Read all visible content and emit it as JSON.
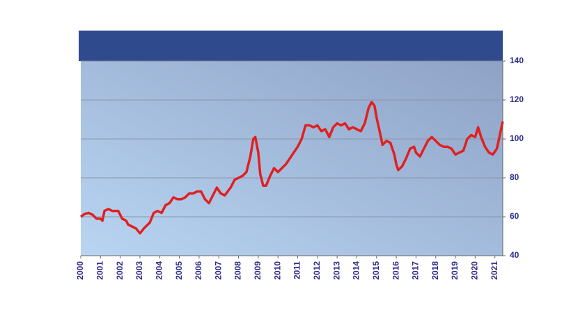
{
  "chart_data": {
    "type": "line",
    "color": "#e02020",
    "x": [
      2000.0,
      2000.2,
      2000.4,
      2000.6,
      2000.8,
      2001.0,
      2001.1,
      2001.2,
      2001.4,
      2001.6,
      2001.9,
      2002.1,
      2002.3,
      2002.4,
      2002.6,
      2002.8,
      2003.0,
      2003.2,
      2003.5,
      2003.7,
      2003.9,
      2004.1,
      2004.3,
      2004.5,
      2004.7,
      2004.9,
      2005.1,
      2005.3,
      2005.5,
      2005.7,
      2005.9,
      2006.1,
      2006.3,
      2006.5,
      2006.7,
      2006.9,
      2007.1,
      2007.3,
      2007.6,
      2007.8,
      2008.0,
      2008.2,
      2008.4,
      2008.6,
      2008.75,
      2008.85,
      2009.0,
      2009.1,
      2009.25,
      2009.4,
      2009.6,
      2009.8,
      2010.0,
      2010.2,
      2010.4,
      2010.6,
      2010.8,
      2011.0,
      2011.2,
      2011.4,
      2011.6,
      2011.8,
      2012.0,
      2012.2,
      2012.4,
      2012.6,
      2012.8,
      2013.0,
      2013.2,
      2013.4,
      2013.6,
      2013.8,
      2014.0,
      2014.2,
      2014.4,
      2014.6,
      2014.75,
      2014.9,
      2015.0,
      2015.2,
      2015.3,
      2015.5,
      2015.7,
      2015.9,
      2016.0,
      2016.1,
      2016.3,
      2016.5,
      2016.7,
      2016.9,
      2017.0,
      2017.2,
      2017.4,
      2017.6,
      2017.8,
      2018.0,
      2018.2,
      2018.4,
      2018.6,
      2018.8,
      2019.0,
      2019.2,
      2019.4,
      2019.6,
      2019.8,
      2020.0,
      2020.15,
      2020.3,
      2020.5,
      2020.7,
      2020.9,
      2021.1,
      2021.25,
      2021.4
    ],
    "values": [
      60,
      61.5,
      62,
      61,
      59,
      59,
      58,
      63,
      64,
      63,
      63,
      59,
      58,
      56,
      55,
      54,
      51.5,
      54,
      57,
      62,
      63,
      62,
      66,
      67,
      70,
      69,
      69,
      70,
      72,
      72,
      73,
      73,
      69,
      67,
      71,
      75,
      72,
      71,
      75,
      79,
      80,
      81,
      83,
      91,
      100,
      101,
      93,
      82,
      76,
      76,
      81,
      85,
      83,
      85,
      87,
      90,
      93,
      96,
      100,
      107,
      107,
      106,
      107,
      104,
      105,
      101,
      106,
      108,
      107,
      108,
      105,
      106,
      105,
      104,
      108,
      116,
      119,
      117,
      111,
      102,
      97,
      99,
      98,
      92,
      87,
      84,
      86,
      90,
      95,
      96,
      93,
      91,
      95,
      99,
      101,
      99,
      97,
      96,
      96,
      95,
      92,
      93,
      94,
      100,
      102,
      101,
      106,
      101,
      96,
      93,
      92,
      95,
      102,
      109
    ],
    "xlim": [
      2000,
      2021.4
    ],
    "ylim": [
      40,
      140
    ],
    "xticks": [
      2000,
      2001,
      2002,
      2003,
      2004,
      2005,
      2006,
      2007,
      2008,
      2009,
      2010,
      2011,
      2012,
      2013,
      2014,
      2015,
      2016,
      2017,
      2018,
      2019,
      2020,
      2021
    ],
    "yticks": [
      40,
      60,
      80,
      100,
      120,
      140
    ],
    "grid": true
  }
}
